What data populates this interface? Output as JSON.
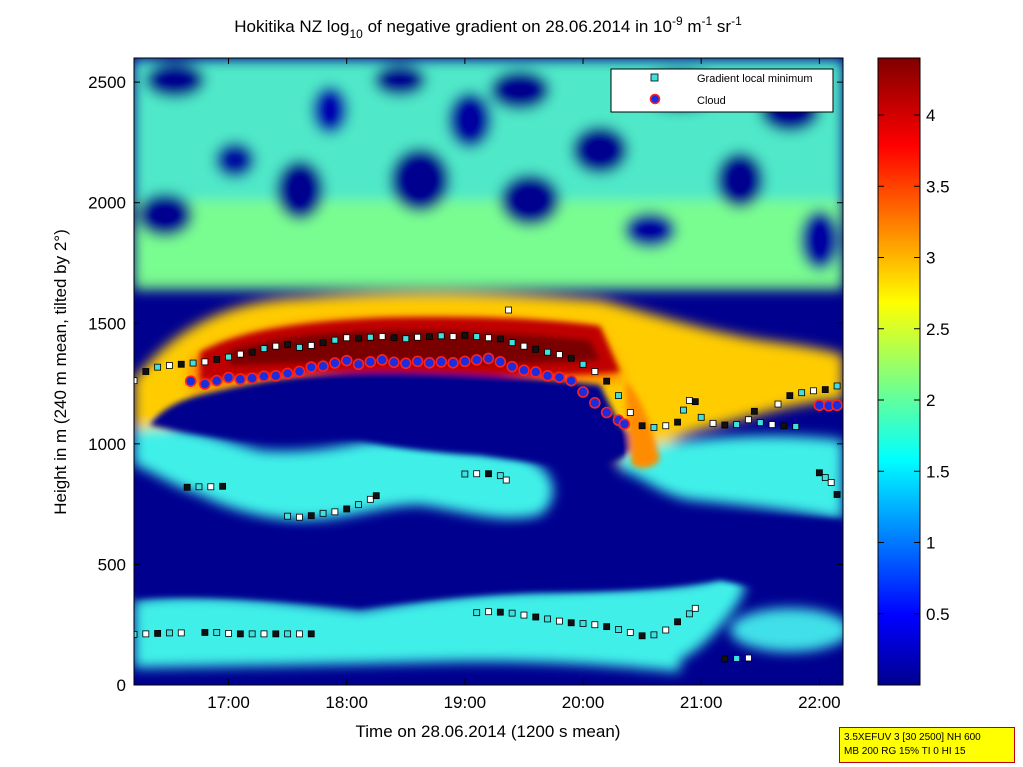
{
  "chart_data": {
    "type": "heatmap",
    "title": {
      "prefix": "Hokitika NZ log",
      "log_base": "10",
      "middle": " of negative gradient on 28.06.2014 in 10",
      "exp1": "-9",
      "mid2": " m",
      "exp2": "-1",
      "mid3": " sr",
      "exp3": "-1"
    },
    "xlabel": "Time on 28.06.2014 (1200 s mean)",
    "ylabel": "Height in m (240 m mean, tilted by 2°)",
    "x_range_hours": [
      16.2,
      22.2
    ],
    "y_range_m": [
      0,
      2600
    ],
    "x_ticks": [
      {
        "hour": 17,
        "label": "17:00"
      },
      {
        "hour": 18,
        "label": "18:00"
      },
      {
        "hour": 19,
        "label": "19:00"
      },
      {
        "hour": 20,
        "label": "20:00"
      },
      {
        "hour": 21,
        "label": "21:00"
      },
      {
        "hour": 22,
        "label": "22:00"
      }
    ],
    "y_ticks": [
      {
        "value": 0,
        "label": "0"
      },
      {
        "value": 500,
        "label": "500"
      },
      {
        "value": 1000,
        "label": "1000"
      },
      {
        "value": 1500,
        "label": "1500"
      },
      {
        "value": 2000,
        "label": "2000"
      },
      {
        "value": 2500,
        "label": "2500"
      }
    ],
    "colorbar": {
      "range": [
        0,
        4.4
      ],
      "ticks": [
        {
          "value": 0.5,
          "label": "0.5"
        },
        {
          "value": 1,
          "label": "1"
        },
        {
          "value": 1.5,
          "label": "1.5"
        },
        {
          "value": 2,
          "label": "2"
        },
        {
          "value": 2.5,
          "label": "2.5"
        },
        {
          "value": 3,
          "label": "3"
        },
        {
          "value": 3.5,
          "label": "3.5"
        },
        {
          "value": 4,
          "label": "4"
        }
      ]
    },
    "legend": {
      "placement": "top-right",
      "entries": [
        {
          "label": "Gradient local minimum",
          "marker": "square",
          "color": "#40e0e0"
        },
        {
          "label": "Cloud",
          "marker": "circle",
          "color": "#1a2ee0",
          "edge": "#ff2020"
        }
      ]
    },
    "series": [
      {
        "name": "Cloud",
        "points": [
          [
            16.68,
            1260
          ],
          [
            16.8,
            1248
          ],
          [
            16.9,
            1262
          ],
          [
            17.0,
            1275
          ],
          [
            17.1,
            1268
          ],
          [
            17.2,
            1272
          ],
          [
            17.3,
            1280
          ],
          [
            17.4,
            1282
          ],
          [
            17.5,
            1292
          ],
          [
            17.6,
            1300
          ],
          [
            17.7,
            1318
          ],
          [
            17.8,
            1322
          ],
          [
            17.9,
            1335
          ],
          [
            18.0,
            1345
          ],
          [
            18.1,
            1330
          ],
          [
            18.2,
            1340
          ],
          [
            18.3,
            1348
          ],
          [
            18.4,
            1338
          ],
          [
            18.5,
            1334
          ],
          [
            18.6,
            1342
          ],
          [
            18.7,
            1336
          ],
          [
            18.8,
            1340
          ],
          [
            18.9,
            1336
          ],
          [
            19.0,
            1342
          ],
          [
            19.1,
            1348
          ],
          [
            19.2,
            1354
          ],
          [
            19.3,
            1340
          ],
          [
            19.4,
            1320
          ],
          [
            19.5,
            1305
          ],
          [
            19.6,
            1298
          ],
          [
            19.7,
            1282
          ],
          [
            19.8,
            1276
          ],
          [
            19.9,
            1262
          ],
          [
            20.0,
            1215
          ],
          [
            20.1,
            1170
          ],
          [
            20.2,
            1130
          ],
          [
            20.3,
            1098
          ],
          [
            20.35,
            1082
          ],
          [
            22.0,
            1160
          ],
          [
            22.08,
            1158
          ],
          [
            22.15,
            1160
          ]
        ]
      },
      {
        "name": "Gradient local minimum",
        "points": [
          [
            16.2,
            1262
          ],
          [
            16.3,
            1300
          ],
          [
            16.4,
            1318
          ],
          [
            16.5,
            1325
          ],
          [
            16.6,
            1330
          ],
          [
            16.7,
            1335
          ],
          [
            16.8,
            1340
          ],
          [
            16.9,
            1350
          ],
          [
            17.0,
            1360
          ],
          [
            17.1,
            1372
          ],
          [
            17.2,
            1380
          ],
          [
            17.3,
            1395
          ],
          [
            17.4,
            1405
          ],
          [
            17.5,
            1412
          ],
          [
            17.6,
            1400
          ],
          [
            17.7,
            1408
          ],
          [
            17.8,
            1420
          ],
          [
            17.9,
            1430
          ],
          [
            18.0,
            1440
          ],
          [
            18.1,
            1438
          ],
          [
            18.2,
            1442
          ],
          [
            18.3,
            1445
          ],
          [
            18.4,
            1440
          ],
          [
            18.5,
            1436
          ],
          [
            18.6,
            1442
          ],
          [
            18.7,
            1445
          ],
          [
            18.8,
            1448
          ],
          [
            18.9,
            1445
          ],
          [
            19.0,
            1450
          ],
          [
            19.1,
            1445
          ],
          [
            19.2,
            1440
          ],
          [
            19.3,
            1435
          ],
          [
            19.4,
            1420
          ],
          [
            19.5,
            1405
          ],
          [
            19.6,
            1392
          ],
          [
            19.7,
            1380
          ],
          [
            19.8,
            1370
          ],
          [
            19.9,
            1355
          ],
          [
            20.0,
            1330
          ],
          [
            20.1,
            1300
          ],
          [
            20.2,
            1260
          ],
          [
            20.3,
            1200
          ],
          [
            20.4,
            1130
          ],
          [
            20.5,
            1075
          ],
          [
            20.6,
            1068
          ],
          [
            20.7,
            1075
          ],
          [
            20.8,
            1090
          ],
          [
            20.85,
            1140
          ],
          [
            20.9,
            1180
          ],
          [
            20.95,
            1175
          ],
          [
            21.0,
            1110
          ],
          [
            21.1,
            1085
          ],
          [
            21.2,
            1078
          ],
          [
            21.3,
            1080
          ],
          [
            21.4,
            1100
          ],
          [
            21.45,
            1135
          ],
          [
            21.5,
            1088
          ],
          [
            21.6,
            1080
          ],
          [
            21.7,
            1075
          ],
          [
            21.8,
            1072
          ],
          [
            21.65,
            1165
          ],
          [
            21.75,
            1200
          ],
          [
            21.85,
            1212
          ],
          [
            21.95,
            1220
          ],
          [
            22.05,
            1225
          ],
          [
            22.15,
            1240
          ],
          [
            19.37,
            1555
          ],
          [
            16.65,
            820
          ],
          [
            16.75,
            822
          ],
          [
            16.85,
            822
          ],
          [
            16.95,
            824
          ],
          [
            17.5,
            700
          ],
          [
            17.6,
            696
          ],
          [
            17.7,
            702
          ],
          [
            17.8,
            712
          ],
          [
            17.9,
            718
          ],
          [
            18.0,
            730
          ],
          [
            18.1,
            748
          ],
          [
            18.2,
            770
          ],
          [
            18.25,
            785
          ],
          [
            19.0,
            875
          ],
          [
            19.1,
            876
          ],
          [
            19.2,
            876
          ],
          [
            19.3,
            868
          ],
          [
            19.35,
            850
          ],
          [
            22.0,
            880
          ],
          [
            22.05,
            860
          ],
          [
            22.1,
            840
          ],
          [
            22.15,
            790
          ],
          [
            16.2,
            210
          ],
          [
            16.3,
            212
          ],
          [
            16.4,
            214
          ],
          [
            16.5,
            216
          ],
          [
            16.6,
            216
          ],
          [
            16.8,
            218
          ],
          [
            16.9,
            218
          ],
          [
            17.0,
            214
          ],
          [
            17.1,
            212
          ],
          [
            17.2,
            212
          ],
          [
            17.3,
            212
          ],
          [
            17.4,
            212
          ],
          [
            17.5,
            212
          ],
          [
            17.6,
            212
          ],
          [
            17.7,
            212
          ],
          [
            19.1,
            300
          ],
          [
            19.2,
            304
          ],
          [
            19.3,
            302
          ],
          [
            19.4,
            298
          ],
          [
            19.5,
            290
          ],
          [
            19.6,
            282
          ],
          [
            19.7,
            274
          ],
          [
            19.8,
            265
          ],
          [
            19.9,
            258
          ],
          [
            20.0,
            255
          ],
          [
            20.1,
            250
          ],
          [
            20.2,
            242
          ],
          [
            20.3,
            230
          ],
          [
            20.4,
            218
          ],
          [
            20.5,
            204
          ],
          [
            20.6,
            208
          ],
          [
            20.7,
            228
          ],
          [
            20.8,
            262
          ],
          [
            20.9,
            295
          ],
          [
            20.95,
            318
          ],
          [
            21.2,
            108
          ],
          [
            21.3,
            110
          ],
          [
            21.4,
            112
          ]
        ]
      }
    ]
  },
  "info_box": {
    "line1": "3.5XEFUV 3 [30 2500] NH 600",
    "line2": "MB 200 RG 15% TI 0 HI 15"
  }
}
